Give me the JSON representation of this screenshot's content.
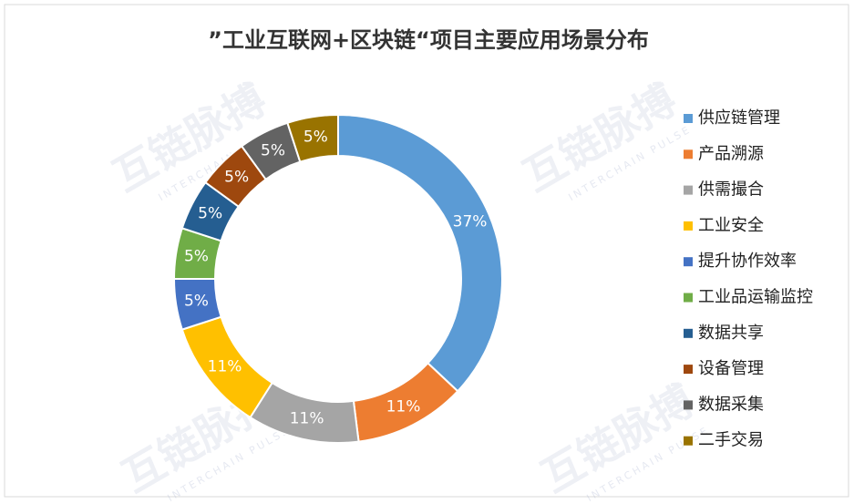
{
  "chart_data": {
    "type": "donut",
    "title": "”工业互联网+区块链“项目主要应用场景分布",
    "categories": [
      "供应链管理",
      "产品溯源",
      "供需撮合",
      "工业安全",
      "提升协作效率",
      "工业品运输监控",
      "数据共享",
      "设备管理",
      "数据采集",
      "二手交易"
    ],
    "values": [
      37,
      11,
      11,
      11,
      5,
      5,
      5,
      5,
      5,
      5
    ],
    "value_labels": [
      "37%",
      "11%",
      "11%",
      "11%",
      "5%",
      "5%",
      "5%",
      "5%",
      "5%",
      "5%"
    ],
    "colors": [
      "#5b9bd5",
      "#ed7d31",
      "#a5a5a5",
      "#ffc000",
      "#4472c4",
      "#70ad47",
      "#255e91",
      "#9e480e",
      "#636363",
      "#997300"
    ],
    "legend": "right"
  },
  "watermark": {
    "text": "互链脉搏",
    "subtext": "INTERCHAIN PULSE"
  }
}
